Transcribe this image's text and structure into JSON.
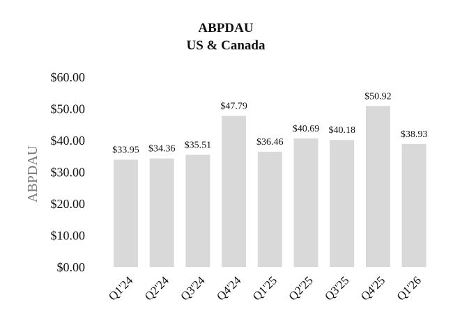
{
  "chart_data": {
    "type": "bar",
    "title": "ABPDAU",
    "subtitle": "US & Canada",
    "xlabel": "",
    "ylabel": "ABPDAU",
    "categories": [
      "Q1'24",
      "Q2'24",
      "Q3'24",
      "Q4'24",
      "Q1'25",
      "Q2'25",
      "Q3'25",
      "Q4'25",
      "Q1'26"
    ],
    "values": [
      33.95,
      34.36,
      35.51,
      47.79,
      36.46,
      40.69,
      40.18,
      50.92,
      38.93
    ],
    "value_labels": [
      "$33.95",
      "$34.36",
      "$35.51",
      "$47.79",
      "$36.46",
      "$40.69",
      "$40.18",
      "$50.92",
      "$38.93"
    ],
    "ylim": [
      0,
      60
    ],
    "yticks": [
      0,
      10,
      20,
      30,
      40,
      50,
      60
    ],
    "ytick_labels": [
      "$0.00",
      "$10.00",
      "$20.00",
      "$30.00",
      "$40.00",
      "$50.00",
      "$60.00"
    ],
    "grid": false,
    "legend": "none",
    "bar_color": "#d9d9d9"
  }
}
